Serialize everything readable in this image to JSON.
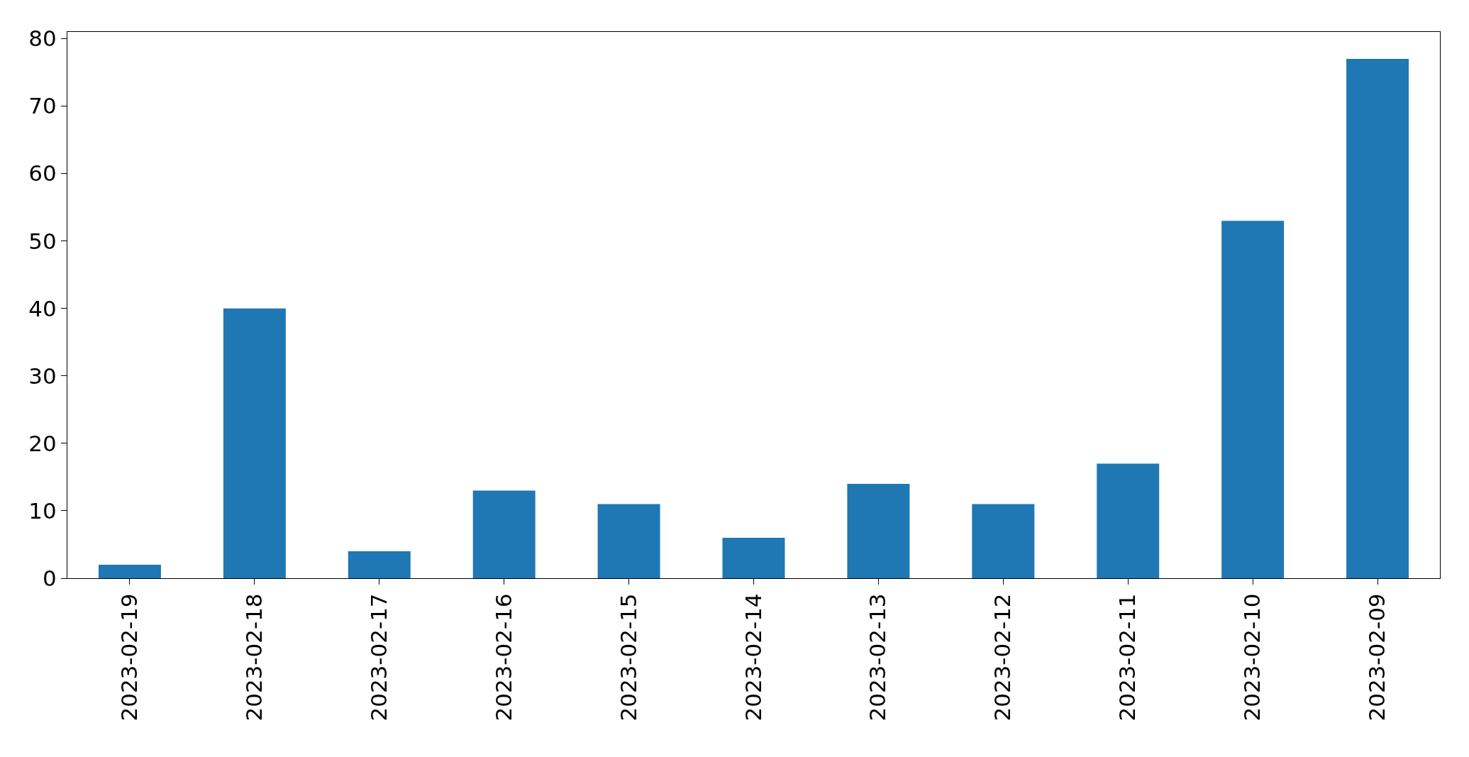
{
  "chart_data": {
    "type": "bar",
    "categories": [
      "2023-02-19",
      "2023-02-18",
      "2023-02-17",
      "2023-02-16",
      "2023-02-15",
      "2023-02-14",
      "2023-02-13",
      "2023-02-12",
      "2023-02-11",
      "2023-02-10",
      "2023-02-09"
    ],
    "values": [
      2,
      40,
      4,
      13,
      11,
      6,
      14,
      11,
      17,
      53,
      77
    ],
    "color": "#1f77b4",
    "ylim": [
      0,
      81
    ],
    "yticks": [
      0,
      10,
      20,
      30,
      40,
      50,
      60,
      70,
      80
    ]
  }
}
